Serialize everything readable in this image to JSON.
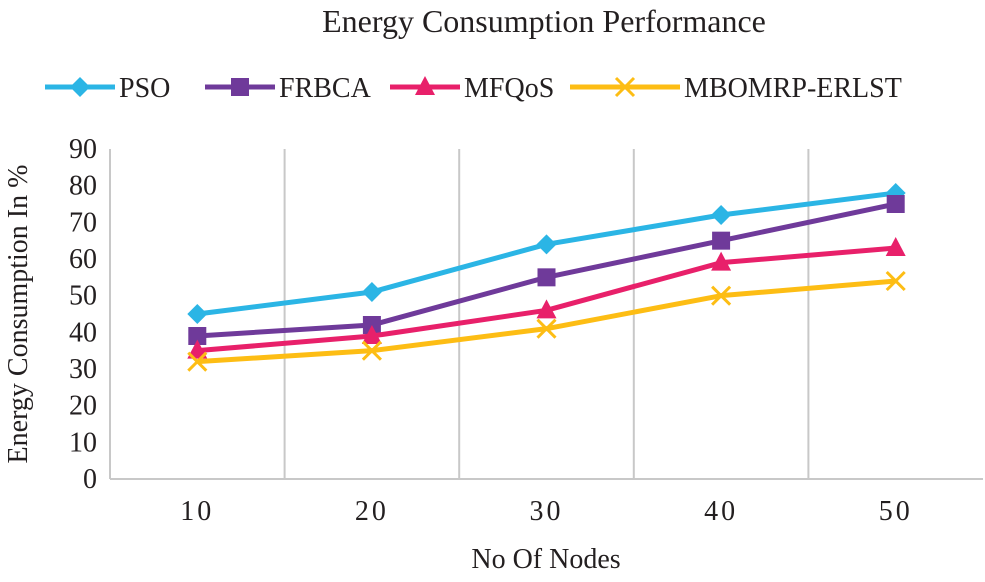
{
  "chart_data": {
    "type": "line",
    "title": "Energy Consumption Performance",
    "xlabel": "No Of Nodes",
    "ylabel": "Energy Consumption In %",
    "categories": [
      "10",
      "20",
      "30",
      "40",
      "50"
    ],
    "ylim": [
      0,
      90
    ],
    "yticks": [
      "0",
      "10",
      "20",
      "30",
      "40",
      "50",
      "60",
      "70",
      "80",
      "90"
    ],
    "grid": "vertical",
    "legend_position": "top",
    "series": [
      {
        "name": "PSO",
        "color": "#2bb5e5",
        "marker": "diamond",
        "values": [
          45,
          51,
          64,
          72,
          78
        ]
      },
      {
        "name": "FRBCA",
        "color": "#6f3a9a",
        "marker": "square",
        "values": [
          39,
          42,
          55,
          65,
          75
        ]
      },
      {
        "name": "MFQoS",
        "color": "#e8206a",
        "marker": "triangle",
        "values": [
          35,
          39,
          46,
          59,
          63
        ]
      },
      {
        "name": "MBOMRP-ERLST",
        "color": "#fdbd14",
        "marker": "x",
        "values": [
          32,
          35,
          41,
          50,
          54
        ]
      }
    ]
  }
}
